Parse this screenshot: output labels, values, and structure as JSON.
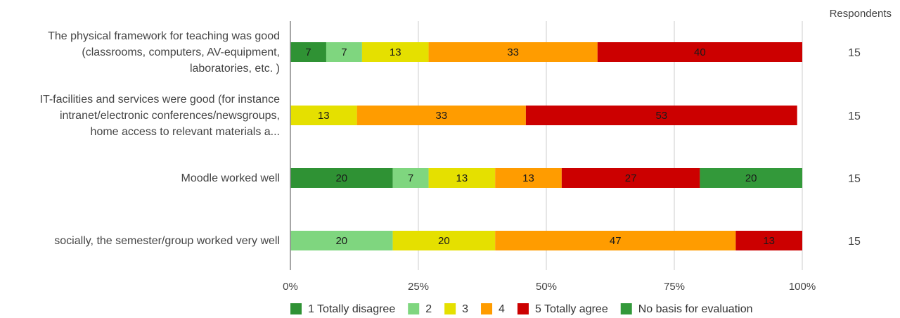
{
  "chart_data": {
    "type": "bar",
    "orientation": "horizontal",
    "stacked": "percent",
    "categories": [
      [
        "The physical framework for teaching was good",
        "(classrooms, computers, AV-equipment,",
        "laboratories, etc. )"
      ],
      [
        "IT-facilities and services were good (for instance",
        "intranet/electronic conferences/newsgroups,",
        "home access to relevant materials a..."
      ],
      [
        "Moodle worked well"
      ],
      [
        "socially, the semester/group worked very well"
      ]
    ],
    "series": [
      {
        "name": "1 Totally disagree",
        "color": "#2f9234",
        "values": [
          7,
          0,
          20,
          0
        ]
      },
      {
        "name": "2",
        "color": "#7fd67f",
        "values": [
          7,
          0,
          7,
          20
        ]
      },
      {
        "name": "3",
        "color": "#e5e000",
        "values": [
          13,
          13,
          13,
          20
        ]
      },
      {
        "name": "4",
        "color": "#ff9c00",
        "values": [
          33,
          33,
          13,
          47
        ]
      },
      {
        "name": "5 Totally agree",
        "color": "#cc0000",
        "values": [
          40,
          53,
          27,
          13
        ]
      },
      {
        "name": "No basis for evaluation",
        "color": "#33993a",
        "values": [
          0,
          0,
          20,
          0
        ]
      }
    ],
    "respondents_header": "Respondents",
    "respondents": [
      "15",
      "15",
      "15",
      "15"
    ],
    "x_ticks": [
      "0%",
      "25%",
      "50%",
      "75%",
      "100%"
    ],
    "xlim": [
      0,
      100
    ],
    "grid": true,
    "legend_position": "bottom"
  }
}
